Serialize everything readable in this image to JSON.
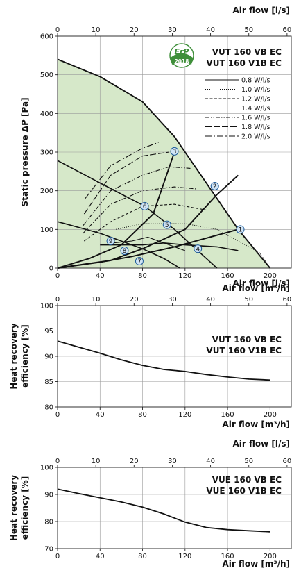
{
  "chart_data": [
    {
      "type": "line",
      "ylabel": "Static pressure ΔP [Pa]",
      "xlabel": "Air flow [m³/h]",
      "x2label": "Air flow [l/s]",
      "xlim": [
        0,
        220
      ],
      "ylim": [
        0,
        600
      ],
      "x_ticks": [
        0,
        40,
        80,
        120,
        160,
        200
      ],
      "y_ticks": [
        0,
        100,
        200,
        300,
        400,
        500,
        600
      ],
      "x2_ticks": [
        0,
        10,
        20,
        30,
        40,
        50,
        60
      ],
      "models": [
        "VUT 160 VB EC",
        "VUT 160 V1B EC"
      ],
      "badge": {
        "top": "ErP",
        "bottom": "2018"
      },
      "legend": [
        {
          "label": "0.8 W/l/s",
          "dash": "solid"
        },
        {
          "label": "1.0 W/l/s",
          "dash": "dot"
        },
        {
          "label": "1.2 W/l/s",
          "dash": "short-dash"
        },
        {
          "label": "1.4 W/l/s",
          "dash": "dash-dot"
        },
        {
          "label": "1.6 W/l/s",
          "dash": "dash-dot-dot"
        },
        {
          "label": "1.8 W/l/s",
          "dash": "long-dash"
        },
        {
          "label": "2.0 W/l/s",
          "dash": "long-dash-dot"
        }
      ],
      "fan_curves": [
        [
          [
            0,
            540
          ],
          [
            40,
            495
          ],
          [
            80,
            430
          ],
          [
            110,
            340
          ],
          [
            120,
            300
          ],
          [
            140,
            220
          ],
          [
            170,
            100
          ],
          [
            200,
            0
          ]
        ],
        [
          [
            0,
            0
          ],
          [
            30,
            25
          ],
          [
            60,
            60
          ],
          [
            90,
            140
          ],
          [
            110,
            300
          ]
        ],
        [
          [
            0,
            0
          ],
          [
            50,
            20
          ],
          [
            80,
            50
          ],
          [
            120,
            100
          ],
          [
            150,
            190
          ],
          [
            170,
            240
          ]
        ],
        [
          [
            0,
            0
          ],
          [
            40,
            15
          ],
          [
            70,
            30
          ],
          [
            110,
            55
          ],
          [
            170,
            100
          ]
        ]
      ],
      "system_curves": [
        [
          [
            0,
            278
          ],
          [
            40,
            220
          ],
          [
            82,
            160
          ],
          [
            110,
            100
          ],
          [
            130,
            50
          ],
          [
            150,
            0
          ]
        ],
        [
          [
            0,
            120
          ],
          [
            40,
            90
          ],
          [
            80,
            50
          ],
          [
            100,
            25
          ],
          [
            115,
            0
          ]
        ],
        [
          [
            40,
            60
          ],
          [
            80,
            60
          ],
          [
            100,
            65
          ],
          [
            120,
            60
          ],
          [
            150,
            55
          ],
          [
            170,
            45
          ]
        ]
      ],
      "efficiency_curves": [
        {
          "legend": 0,
          "points": [
            [
              52,
              65
            ],
            [
              70,
              70
            ],
            [
              85,
              80
            ],
            [
              120,
              45
            ]
          ]
        },
        {
          "legend": 1,
          "points": [
            [
              55,
              100
            ],
            [
              80,
              115
            ],
            [
              120,
              115
            ],
            [
              150,
              100
            ],
            [
              190,
              40
            ],
            [
              200,
              0
            ]
          ]
        },
        {
          "legend": 2,
          "points": [
            [
              25,
              70
            ],
            [
              50,
              120
            ],
            [
              80,
              160
            ],
            [
              110,
              165
            ],
            [
              140,
              150
            ]
          ]
        },
        {
          "legend": 3,
          "points": [
            [
              24,
              90
            ],
            [
              50,
              165
            ],
            [
              80,
              200
            ],
            [
              110,
              210
            ],
            [
              130,
              205
            ]
          ]
        },
        {
          "legend": 4,
          "points": [
            [
              24,
              110
            ],
            [
              50,
              200
            ],
            [
              80,
              240
            ],
            [
              105,
              262
            ],
            [
              125,
              258
            ]
          ]
        },
        {
          "legend": 5,
          "points": [
            [
              25,
              140
            ],
            [
              50,
              240
            ],
            [
              80,
              290
            ],
            [
              105,
              300
            ]
          ]
        },
        {
          "legend": 6,
          "points": [
            [
              26,
              180
            ],
            [
              50,
              265
            ],
            [
              80,
              310
            ],
            [
              95,
              325
            ]
          ]
        }
      ],
      "points": [
        {
          "label": "1",
          "x": 172,
          "y": 100
        },
        {
          "label": "2",
          "x": 148,
          "y": 212
        },
        {
          "label": "3",
          "x": 110,
          "y": 302
        },
        {
          "label": "4",
          "x": 132,
          "y": 50
        },
        {
          "label": "5",
          "x": 103,
          "y": 112
        },
        {
          "label": "6",
          "x": 82,
          "y": 160
        },
        {
          "label": "7",
          "x": 77,
          "y": 18
        },
        {
          "label": "8",
          "x": 63,
          "y": 45
        },
        {
          "label": "9",
          "x": 50,
          "y": 70
        }
      ]
    },
    {
      "type": "line",
      "ylabel": "Heat recovery efficiency [%]",
      "xlabel": "Air flow [m³/h]",
      "x2label": "Air flow [l/s]",
      "xlim": [
        0,
        220
      ],
      "ylim": [
        80,
        100
      ],
      "x_ticks": [
        0,
        40,
        80,
        120,
        160,
        200
      ],
      "y_ticks": [
        80,
        85,
        90,
        95,
        100
      ],
      "x2_ticks": [
        0,
        10,
        20,
        30,
        40,
        50,
        60
      ],
      "models": [
        "VUT 160 VB EC",
        "VUT 160 V1B EC"
      ],
      "x": [
        0,
        20,
        40,
        60,
        80,
        100,
        120,
        140,
        160,
        180,
        200
      ],
      "y": [
        93,
        91.8,
        90.6,
        89.3,
        88.2,
        87.4,
        87.0,
        86.4,
        85.9,
        85.5,
        85.3
      ]
    },
    {
      "type": "line",
      "ylabel": "Heat recovery efficiency [%]",
      "xlabel": "Air flow [m³/h]",
      "x2label": "Air flow [l/s]",
      "xlim": [
        0,
        220
      ],
      "ylim": [
        70,
        100
      ],
      "x_ticks": [
        0,
        40,
        80,
        120,
        160,
        200
      ],
      "y_ticks": [
        70,
        80,
        90,
        100
      ],
      "x2_ticks": [
        0,
        10,
        20,
        30,
        40,
        50,
        60
      ],
      "models": [
        "VUE 160 VB EC",
        "VUE 160 V1B EC"
      ],
      "x": [
        0,
        20,
        40,
        60,
        80,
        100,
        120,
        140,
        160,
        180,
        200
      ],
      "y": [
        92,
        90.3,
        88.8,
        87.2,
        85.3,
        82.8,
        79.8,
        77.8,
        77.0,
        76.6,
        76.2
      ]
    }
  ]
}
